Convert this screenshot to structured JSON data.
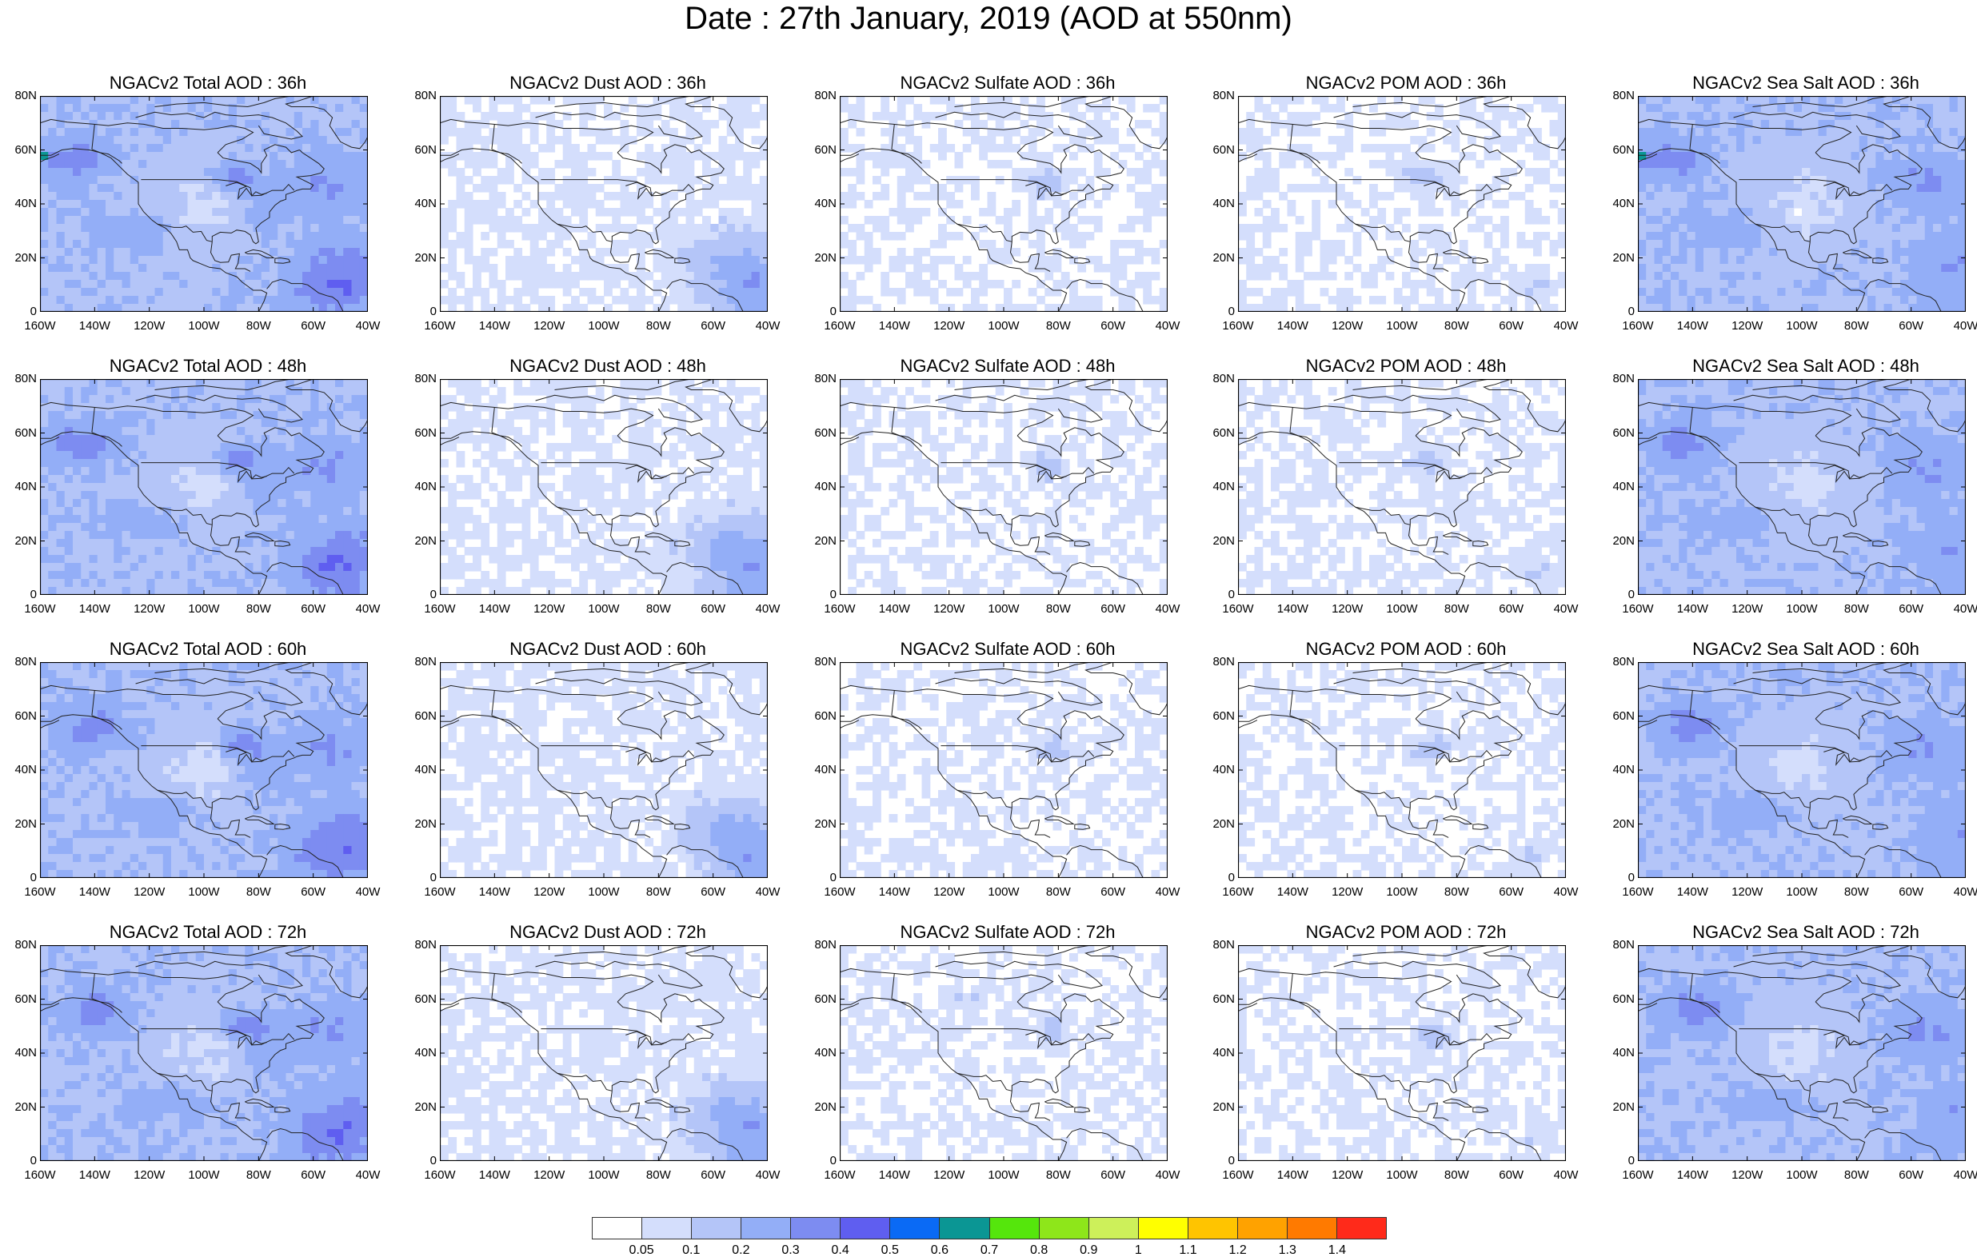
{
  "title": "Date : 27th January, 2019 (AOD at 550nm)",
  "lat_labels": [
    "80N",
    "60N",
    "40N",
    "20N",
    "0"
  ],
  "lon_labels": [
    "160W",
    "140W",
    "120W",
    "100W",
    "80W",
    "60W",
    "40W"
  ],
  "panels": [
    {
      "title": "NGACv2 Total AOD : 36h",
      "field": "total",
      "hour": 36
    },
    {
      "title": "NGACv2 Dust AOD : 36h",
      "field": "dust",
      "hour": 36
    },
    {
      "title": "NGACv2 Sulfate AOD : 36h",
      "field": "sulfate",
      "hour": 36
    },
    {
      "title": "NGACv2 POM AOD : 36h",
      "field": "pom",
      "hour": 36
    },
    {
      "title": "NGACv2 Sea Salt AOD : 36h",
      "field": "seasalt",
      "hour": 36
    },
    {
      "title": "NGACv2 Total AOD : 48h",
      "field": "total",
      "hour": 48
    },
    {
      "title": "NGACv2 Dust AOD : 48h",
      "field": "dust",
      "hour": 48
    },
    {
      "title": "NGACv2 Sulfate AOD : 48h",
      "field": "sulfate",
      "hour": 48
    },
    {
      "title": "NGACv2 POM AOD : 48h",
      "field": "pom",
      "hour": 48
    },
    {
      "title": "NGACv2 Sea Salt AOD : 48h",
      "field": "seasalt",
      "hour": 48
    },
    {
      "title": "NGACv2 Total AOD : 60h",
      "field": "total",
      "hour": 60
    },
    {
      "title": "NGACv2 Dust AOD : 60h",
      "field": "dust",
      "hour": 60
    },
    {
      "title": "NGACv2 Sulfate AOD : 60h",
      "field": "sulfate",
      "hour": 60
    },
    {
      "title": "NGACv2 POM AOD : 60h",
      "field": "pom",
      "hour": 60
    },
    {
      "title": "NGACv2 Sea Salt AOD : 60h",
      "field": "seasalt",
      "hour": 60
    },
    {
      "title": "NGACv2 Total AOD : 72h",
      "field": "total",
      "hour": 72
    },
    {
      "title": "NGACv2 Dust AOD : 72h",
      "field": "dust",
      "hour": 72
    },
    {
      "title": "NGACv2 Sulfate AOD : 72h",
      "field": "sulfate",
      "hour": 72
    },
    {
      "title": "NGACv2 POM AOD : 72h",
      "field": "pom",
      "hour": 72
    },
    {
      "title": "NGACv2 Sea Salt  AOD : 72h",
      "field": "seasalt",
      "hour": 72
    }
  ],
  "colorbar": {
    "colors": [
      "#ffffff",
      "#d4defc",
      "#b4c5f8",
      "#93aef7",
      "#7d8cf1",
      "#5f5ef0",
      "#0a6af5",
      "#0b9694",
      "#55e60c",
      "#8ee61a",
      "#cdf05a",
      "#ffff00",
      "#ffc400",
      "#ffa200",
      "#ff7a00",
      "#ff2a1a"
    ],
    "labels": [
      "0.05",
      "0.1",
      "0.2",
      "0.3",
      "0.4",
      "0.5",
      "0.6",
      "0.7",
      "0.8",
      "0.9",
      "1",
      "1.1",
      "1.2",
      "1.3",
      "1.4"
    ]
  }
}
